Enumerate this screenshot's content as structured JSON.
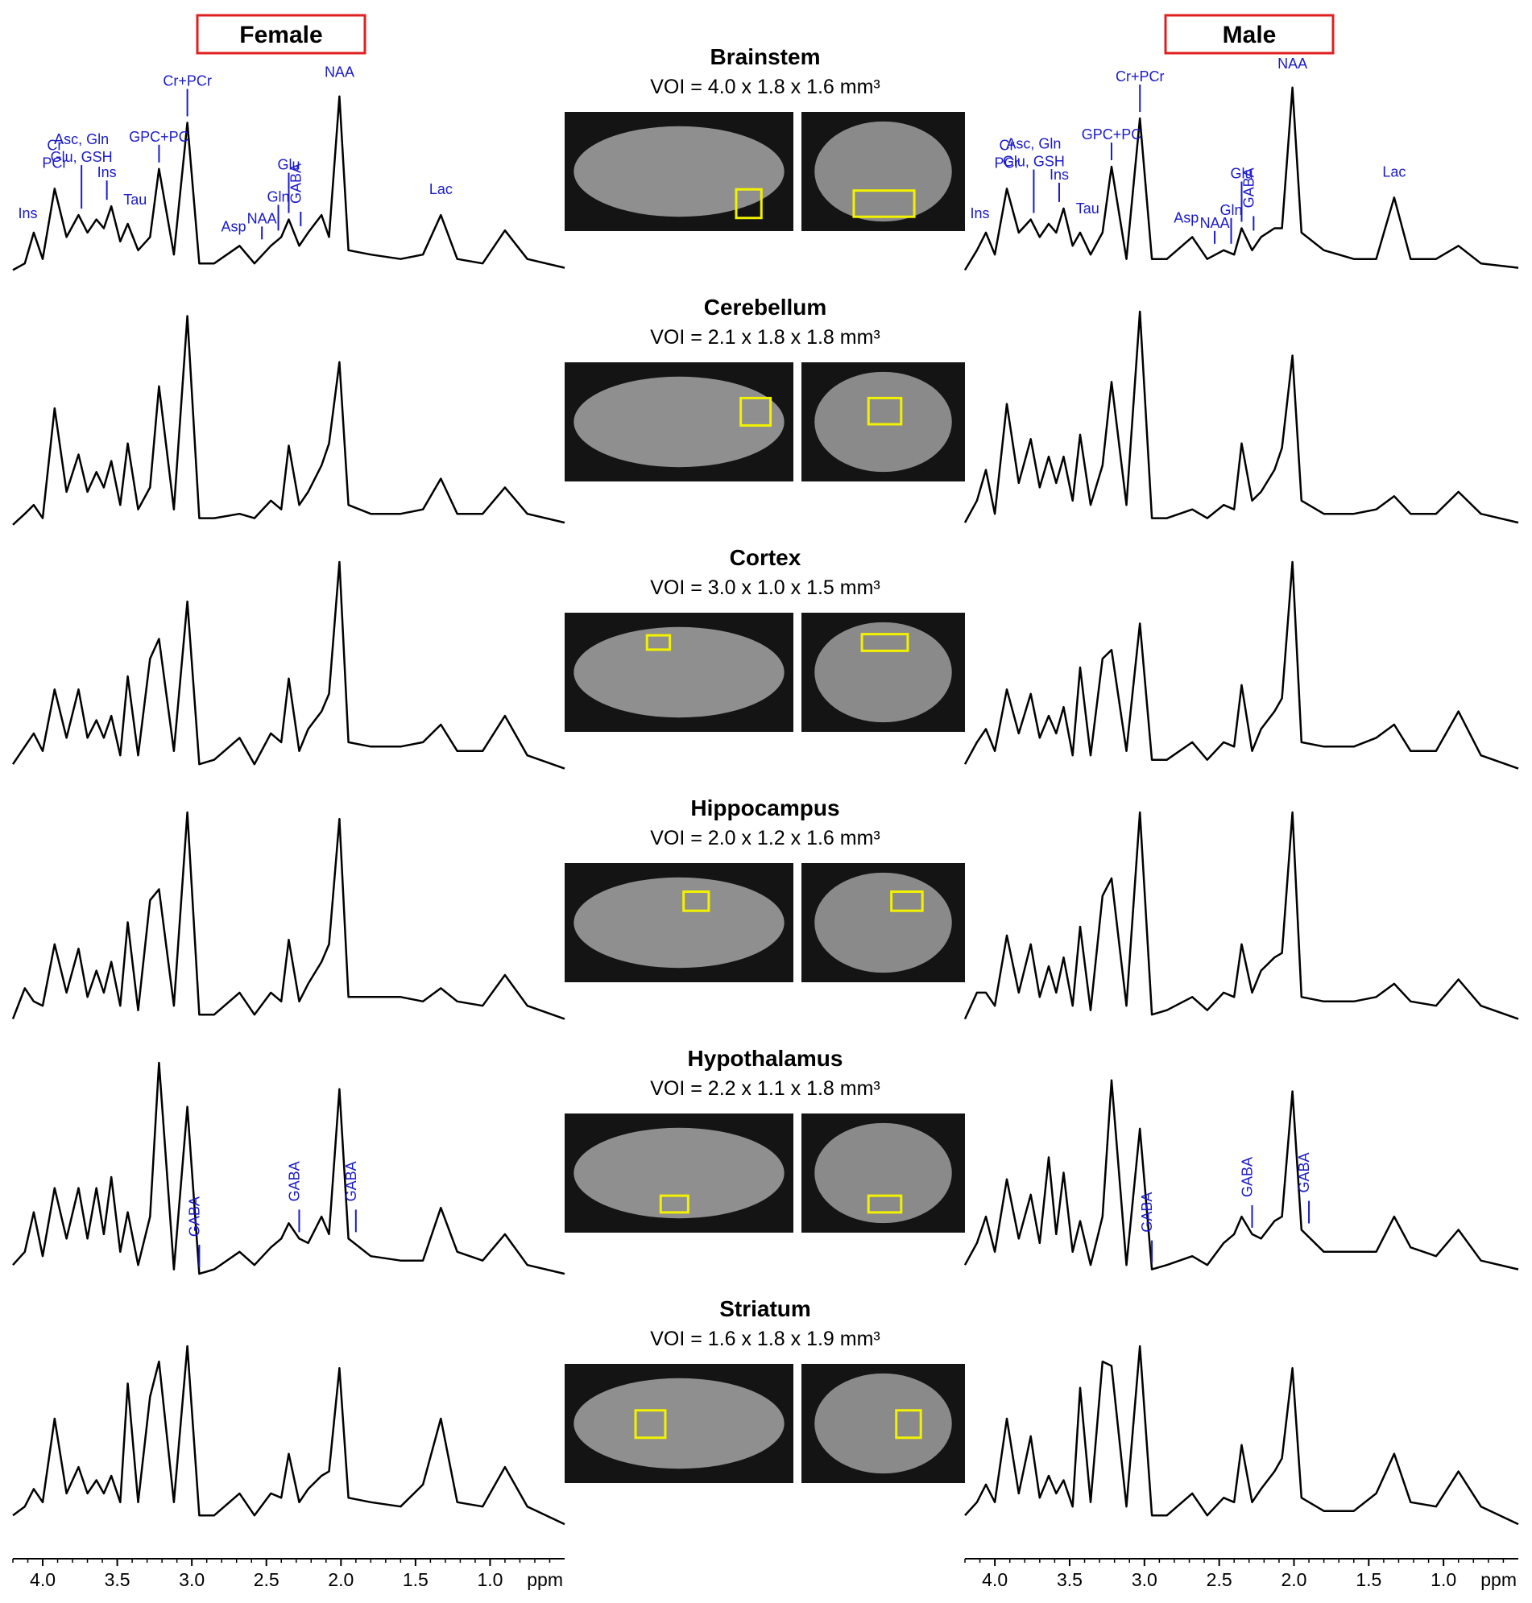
{
  "regions": [
    {
      "title": "Brainstem",
      "voi": "VOI = 4.0 x 1.8 x 1.6 mm³"
    },
    {
      "title": "Cerebellum",
      "voi": "VOI = 2.1 x 1.8 x 1.8 mm³"
    },
    {
      "title": "Cortex",
      "voi": "VOI = 3.0 x 1.0 x 1.5 mm³"
    },
    {
      "title": "Hippocampus",
      "voi": "VOI = 2.0 x 1.2 x 1.6 mm³"
    },
    {
      "title": "Hypothalamus",
      "voi": "VOI = 2.2 x 1.1 x 1.8 mm³"
    },
    {
      "title": "Striatum",
      "voi": "VOI = 1.6 x 1.8 x 1.9 mm³"
    }
  ],
  "chart_data": {
    "type": "line",
    "color": "#000000",
    "label_color": "#1a1acc",
    "x": [
      4.2,
      4.12,
      4.06,
      4.0,
      3.92,
      3.84,
      3.76,
      3.7,
      3.64,
      3.59,
      3.54,
      3.48,
      3.43,
      3.36,
      3.28,
      3.22,
      3.12,
      3.03,
      2.95,
      2.85,
      2.68,
      2.58,
      2.47,
      2.4,
      2.35,
      2.28,
      2.22,
      2.13,
      2.08,
      2.01,
      1.95,
      1.8,
      1.6,
      1.45,
      1.33,
      1.22,
      1.05,
      0.9,
      0.75,
      0.5
    ],
    "xlim": [
      4.2,
      0.5
    ],
    "xticks": [
      {
        "value": 4,
        "label": "4.0"
      },
      3.5,
      {
        "value": 3,
        "label": "3.0"
      },
      2.5,
      {
        "value": 2,
        "label": "2.0"
      },
      1.5,
      {
        "value": 1,
        "label": "1.0"
      }
    ],
    "xlabel": "ppm",
    "ylim": [
      0,
      100
    ],
    "columns": [
      {
        "title": "Female",
        "rows": [
          {
            "values": [
              5,
              8,
              22,
              10,
              42,
              20,
              30,
              22,
              28,
              24,
              34,
              18,
              26,
              14,
              20,
              51,
              12,
              72,
              8,
              8,
              16,
              8,
              16,
              20,
              28,
              16,
              22,
              30,
              20,
              84,
              14,
              12,
              10,
              12,
              30,
              10,
              8,
              23,
              10,
              6
            ],
            "annotations": [
              {
                "text": [
                  "Ins"
                ],
                "x": 4.1
              },
              {
                "text": [
                  "Cr",
                  "PCr"
                ],
                "x": 3.92
              },
              {
                "text": [
                  "Asc, Gln",
                  "Glu, GSH"
                ],
                "x": 3.74
              },
              {
                "text": [
                  "Ins"
                ],
                "x": 3.57
              },
              {
                "text": [
                  "Tau"
                ],
                "x": 3.38
              },
              {
                "text": [
                  "GPC+PC"
                ],
                "x": 3.22
              },
              {
                "text": [
                  "Cr+PCr"
                ],
                "x": 3.03
              },
              {
                "text": [
                  "Asp"
                ],
                "x": 2.72
              },
              {
                "text": [
                  "NAA"
                ],
                "x": 2.53
              },
              {
                "text": [
                  "Gln"
                ],
                "x": 2.42
              },
              {
                "text": [
                  "Glu"
                ],
                "x": 2.35
              },
              {
                "text": [
                  "GABA"
                ],
                "x": 2.27,
                "vertical": true
              },
              {
                "text": [
                  "NAA"
                ],
                "x": 2.01
              },
              {
                "text": [
                  "Lac"
                ],
                "x": 1.33
              }
            ]
          },
          {
            "values": [
              3,
              8,
              12,
              6,
              56,
              18,
              35,
              18,
              27,
              20,
              32,
              12,
              40,
              10,
              20,
              66,
              10,
              98,
              6,
              6,
              8,
              6,
              14,
              10,
              39,
              12,
              18,
              30,
              40,
              77,
              12,
              8,
              8,
              10,
              24,
              8,
              8,
              20,
              8,
              4
            ]
          },
          {
            "values": [
              8,
              16,
              22,
              14,
              42,
              20,
              42,
              20,
              28,
              20,
              30,
              12,
              48,
              12,
              56,
              65,
              14,
              82,
              8,
              10,
              20,
              8,
              22,
              18,
              47,
              14,
              24,
              32,
              40,
              100,
              18,
              16,
              16,
              18,
              26,
              14,
              14,
              30,
              12,
              6
            ]
          },
          {
            "values": [
              6,
              20,
              14,
              12,
              40,
              18,
              38,
              16,
              28,
              18,
              32,
              12,
              50,
              10,
              60,
              65,
              12,
              100,
              8,
              8,
              18,
              8,
              18,
              14,
              42,
              14,
              22,
              32,
              40,
              97,
              16,
              16,
              16,
              14,
              20,
              14,
              12,
              26,
              12,
              6
            ]
          },
          {
            "values": [
              8,
              14,
              32,
              12,
              43,
              20,
              43,
              20,
              43,
              22,
              48,
              14,
              32,
              8,
              30,
              100,
              6,
              80,
              4,
              6,
              14,
              8,
              16,
              20,
              27,
              20,
              18,
              30,
              22,
              88,
              20,
              12,
              10,
              10,
              34,
              14,
              10,
              22,
              8,
              4
            ],
            "annotations": [
              {
                "text": [
                  "GABA"
                ],
                "x": 2.95,
                "vertical": true
              },
              {
                "text": [
                  "GABA"
                ],
                "x": 2.28,
                "vertical": true
              },
              {
                "text": [
                  "GABA"
                ],
                "x": 1.9,
                "vertical": true
              }
            ]
          },
          {
            "values": [
              8,
              12,
              20,
              14,
              52,
              18,
              30,
              18,
              24,
              18,
              26,
              14,
              68,
              14,
              62,
              78,
              14,
              85,
              8,
              8,
              18,
              8,
              18,
              16,
              36,
              14,
              20,
              26,
              28,
              75,
              16,
              14,
              12,
              22,
              52,
              14,
              12,
              30,
              12,
              4
            ]
          }
        ]
      },
      {
        "title": "Male",
        "rows": [
          {
            "values": [
              5,
              14,
              22,
              12,
              42,
              22,
              28,
              20,
              26,
              22,
              33,
              16,
              22,
              12,
              22,
              52,
              10,
              74,
              10,
              10,
              20,
              10,
              14,
              12,
              24,
              14,
              20,
              24,
              24,
              88,
              22,
              14,
              10,
              10,
              38,
              10,
              10,
              16,
              8,
              6
            ],
            "annotations": [
              {
                "text": [
                  "Ins"
                ],
                "x": 4.1
              },
              {
                "text": [
                  "Cr",
                  "PCr"
                ],
                "x": 3.92
              },
              {
                "text": [
                  "Asc, Gln",
                  "Glu, GSH"
                ],
                "x": 3.74
              },
              {
                "text": [
                  "Ins"
                ],
                "x": 3.57
              },
              {
                "text": [
                  "Tau"
                ],
                "x": 3.38
              },
              {
                "text": [
                  "GPC+PC"
                ],
                "x": 3.22
              },
              {
                "text": [
                  "Cr+PCr"
                ],
                "x": 3.03
              },
              {
                "text": [
                  "Asp"
                ],
                "x": 2.72
              },
              {
                "text": [
                  "NAA"
                ],
                "x": 2.53
              },
              {
                "text": [
                  "Gln"
                ],
                "x": 2.42
              },
              {
                "text": [
                  "Glu"
                ],
                "x": 2.35
              },
              {
                "text": [
                  "GABA"
                ],
                "x": 2.27,
                "vertical": true
              },
              {
                "text": [
                  "NAA"
                ],
                "x": 2.01
              },
              {
                "text": [
                  "Lac"
                ],
                "x": 1.33
              }
            ]
          },
          {
            "values": [
              4,
              14,
              28,
              8,
              58,
              22,
              42,
              20,
              34,
              22,
              34,
              14,
              44,
              12,
              30,
              68,
              12,
              100,
              6,
              6,
              10,
              6,
              12,
              10,
              40,
              14,
              18,
              28,
              38,
              80,
              14,
              8,
              8,
              10,
              16,
              8,
              8,
              18,
              8,
              4
            ]
          },
          {
            "values": [
              8,
              18,
              24,
              14,
              42,
              22,
              40,
              20,
              30,
              22,
              34,
              12,
              52,
              12,
              56,
              60,
              14,
              72,
              10,
              10,
              18,
              10,
              18,
              16,
              44,
              14,
              24,
              32,
              38,
              100,
              18,
              16,
              16,
              20,
              26,
              14,
              14,
              32,
              12,
              6
            ]
          },
          {
            "values": [
              6,
              18,
              18,
              12,
              44,
              18,
              40,
              16,
              30,
              18,
              34,
              12,
              48,
              10,
              62,
              70,
              12,
              100,
              8,
              10,
              16,
              10,
              18,
              16,
              40,
              18,
              28,
              34,
              36,
              100,
              16,
              14,
              14,
              16,
              22,
              14,
              12,
              24,
              12,
              6
            ]
          },
          {
            "values": [
              8,
              18,
              30,
              14,
              47,
              20,
              40,
              18,
              57,
              22,
              50,
              14,
              28,
              8,
              30,
              92,
              8,
              70,
              6,
              8,
              12,
              8,
              18,
              22,
              30,
              22,
              20,
              28,
              30,
              87,
              24,
              14,
              14,
              14,
              30,
              16,
              12,
              24,
              10,
              6
            ],
            "annotations": [
              {
                "text": [
                  "GABA"
                ],
                "x": 2.95,
                "vertical": true
              },
              {
                "text": [
                  "GABA"
                ],
                "x": 2.28,
                "vertical": true
              },
              {
                "text": [
                  "GABA"
                ],
                "x": 1.9,
                "vertical": true
              }
            ]
          },
          {
            "values": [
              8,
              14,
              22,
              14,
              52,
              18,
              44,
              16,
              26,
              18,
              24,
              12,
              66,
              14,
              78,
              76,
              12,
              85,
              8,
              8,
              18,
              8,
              16,
              14,
              40,
              14,
              20,
              28,
              34,
              75,
              16,
              10,
              10,
              18,
              36,
              14,
              12,
              28,
              12,
              4
            ]
          }
        ]
      }
    ]
  }
}
